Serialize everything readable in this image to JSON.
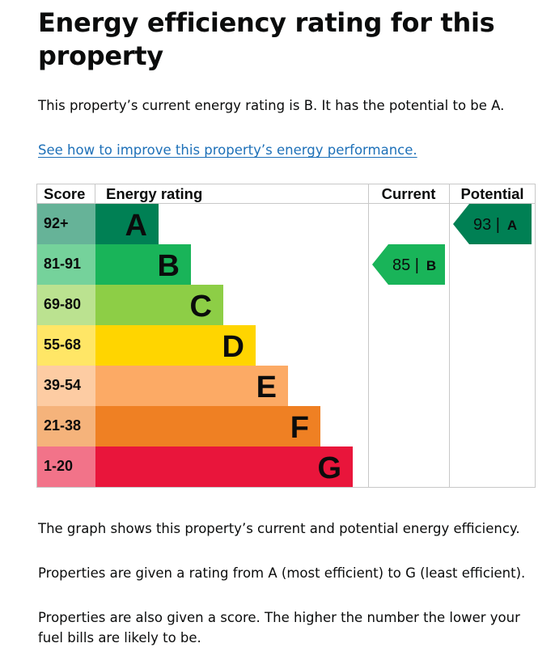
{
  "page": {
    "title": "Energy efficiency rating for this property",
    "intro": "This property’s current energy rating is B. It has the potential to be A.",
    "link_text": "See how to improve this property’s energy performance.",
    "notes": [
      "The graph shows this property’s current and potential energy efficiency.",
      "Properties are given a rating from A (most efficient) to G (least efficient).",
      "Properties are also given a score. The higher the number the lower your fuel bills are likely to be."
    ]
  },
  "chart_data": {
    "type": "table",
    "headers": {
      "score": "Score",
      "rating": "Energy rating",
      "current": "Current",
      "potential": "Potential"
    },
    "bands": [
      {
        "letter": "A",
        "score": "92+",
        "color": "#008054",
        "score_bg": "#66b398"
      },
      {
        "letter": "B",
        "score": "81-91",
        "color": "#19b459",
        "score_bg": "#75d29b"
      },
      {
        "letter": "C",
        "score": "69-80",
        "color": "#8dce46",
        "score_bg": "#bbe290"
      },
      {
        "letter": "D",
        "score": "55-68",
        "color": "#ffd500",
        "score_bg": "#ffe666"
      },
      {
        "letter": "E",
        "score": "39-54",
        "color": "#fcaa65",
        "score_bg": "#fdcca3"
      },
      {
        "letter": "F",
        "score": "21-38",
        "color": "#ef8023",
        "score_bg": "#f5b37b"
      },
      {
        "letter": "G",
        "score": "1-20",
        "color": "#e9153b",
        "score_bg": "#f27389"
      }
    ],
    "current": {
      "score": 85,
      "letter": "B",
      "label": "85 |",
      "color": "#19b459"
    },
    "potential": {
      "score": 93,
      "letter": "A",
      "label": "93 |",
      "color": "#008054"
    }
  }
}
